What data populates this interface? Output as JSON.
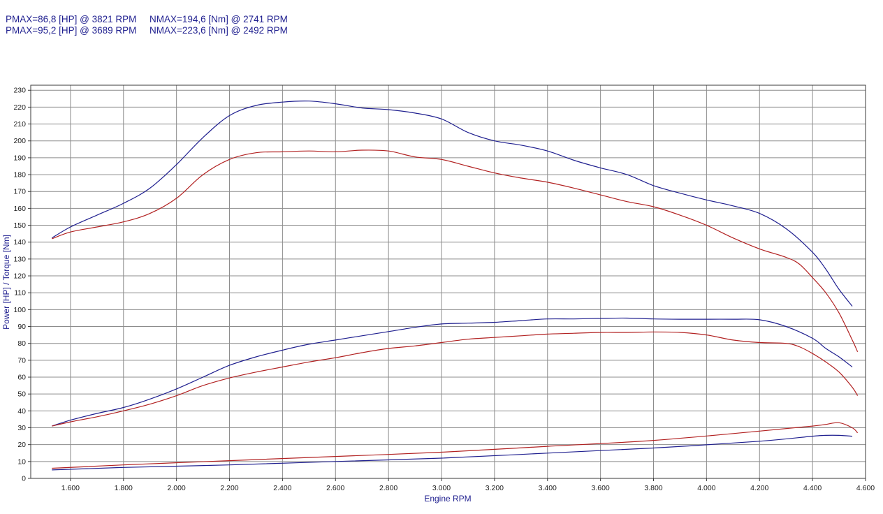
{
  "header": {
    "rows": [
      {
        "pmax": "PMAX=86,8 [HP] @ 3821 RPM",
        "nmax": "NMAX=194,6 [Nm] @ 2741 RPM"
      },
      {
        "pmax": "PMAX=95,2 [HP] @ 3689 RPM",
        "nmax": "NMAX=223,6 [Nm] @ 2492 RPM"
      }
    ]
  },
  "chart_data": {
    "type": "line",
    "xlabel": "Engine RPM",
    "ylabel": "Power [HP] / Torque [Nm]",
    "xlim": [
      1450,
      4600
    ],
    "ylim": [
      0,
      233
    ],
    "x_ticks": [
      1600,
      1800,
      2000,
      2200,
      2400,
      2600,
      2800,
      3000,
      3200,
      3400,
      3600,
      3800,
      4000,
      4200,
      4400,
      4600
    ],
    "x_tick_labels": [
      "1.600",
      "1.800",
      "2.000",
      "2.200",
      "2.400",
      "2.600",
      "2.800",
      "3.000",
      "3.200",
      "3.400",
      "3.600",
      "3.800",
      "4.000",
      "4.200",
      "4.400",
      "4.600"
    ],
    "y_ticks": [
      0,
      10,
      20,
      30,
      40,
      50,
      60,
      70,
      80,
      90,
      100,
      110,
      120,
      130,
      140,
      150,
      160,
      170,
      180,
      190,
      200,
      210,
      220,
      230
    ],
    "grid": true,
    "colors": {
      "blue": "#1f1f8f",
      "red": "#b22222",
      "grid": "#8c8c8c"
    },
    "series": [
      {
        "color": "#1f1f8f",
        "points": [
          [
            1530,
            142.5
          ],
          [
            1600,
            149
          ],
          [
            1700,
            156
          ],
          [
            1800,
            163
          ],
          [
            1900,
            172
          ],
          [
            2000,
            186
          ],
          [
            2100,
            202
          ],
          [
            2200,
            215
          ],
          [
            2300,
            221
          ],
          [
            2400,
            223
          ],
          [
            2500,
            223.6
          ],
          [
            2600,
            222
          ],
          [
            2700,
            219.5
          ],
          [
            2800,
            218.5
          ],
          [
            2900,
            216.5
          ],
          [
            3000,
            213
          ],
          [
            3100,
            205
          ],
          [
            3200,
            200
          ],
          [
            3300,
            197.5
          ],
          [
            3400,
            194
          ],
          [
            3500,
            188.5
          ],
          [
            3600,
            184
          ],
          [
            3700,
            180
          ],
          [
            3800,
            173.5
          ],
          [
            3900,
            169
          ],
          [
            4000,
            165
          ],
          [
            4100,
            161.5
          ],
          [
            4200,
            157
          ],
          [
            4300,
            148
          ],
          [
            4400,
            134
          ],
          [
            4450,
            124
          ],
          [
            4500,
            112
          ],
          [
            4550,
            102
          ]
        ]
      },
      {
        "color": "#b22222",
        "points": [
          [
            1530,
            142
          ],
          [
            1600,
            146
          ],
          [
            1700,
            149
          ],
          [
            1800,
            152
          ],
          [
            1900,
            157
          ],
          [
            2000,
            166
          ],
          [
            2100,
            180
          ],
          [
            2200,
            189
          ],
          [
            2300,
            193
          ],
          [
            2400,
            193.5
          ],
          [
            2500,
            194
          ],
          [
            2600,
            193.5
          ],
          [
            2700,
            194.5
          ],
          [
            2800,
            194
          ],
          [
            2900,
            190.5
          ],
          [
            3000,
            189
          ],
          [
            3100,
            185
          ],
          [
            3200,
            181
          ],
          [
            3300,
            178
          ],
          [
            3400,
            175.5
          ],
          [
            3500,
            172
          ],
          [
            3600,
            168
          ],
          [
            3700,
            164
          ],
          [
            3800,
            161
          ],
          [
            3900,
            156
          ],
          [
            4000,
            150
          ],
          [
            4100,
            142.5
          ],
          [
            4200,
            136
          ],
          [
            4300,
            131
          ],
          [
            4350,
            127
          ],
          [
            4400,
            119
          ],
          [
            4450,
            110
          ],
          [
            4500,
            98
          ],
          [
            4550,
            82
          ],
          [
            4570,
            75
          ]
        ]
      },
      {
        "color": "#1f1f8f",
        "points": [
          [
            1530,
            31
          ],
          [
            1600,
            34.5
          ],
          [
            1700,
            38.5
          ],
          [
            1800,
            42
          ],
          [
            1900,
            47
          ],
          [
            2000,
            53
          ],
          [
            2100,
            60
          ],
          [
            2200,
            67
          ],
          [
            2300,
            72
          ],
          [
            2400,
            76
          ],
          [
            2500,
            79.5
          ],
          [
            2600,
            82
          ],
          [
            2700,
            84.5
          ],
          [
            2800,
            87
          ],
          [
            2900,
            89.5
          ],
          [
            3000,
            91.5
          ],
          [
            3100,
            92
          ],
          [
            3200,
            92.5
          ],
          [
            3300,
            93.5
          ],
          [
            3400,
            94.5
          ],
          [
            3500,
            94.5
          ],
          [
            3600,
            94.8
          ],
          [
            3700,
            95
          ],
          [
            3800,
            94.5
          ],
          [
            3900,
            94.3
          ],
          [
            4000,
            94.3
          ],
          [
            4100,
            94.3
          ],
          [
            4200,
            94
          ],
          [
            4300,
            90
          ],
          [
            4400,
            83
          ],
          [
            4450,
            77
          ],
          [
            4500,
            72
          ],
          [
            4550,
            66
          ]
        ]
      },
      {
        "color": "#b22222",
        "points": [
          [
            1530,
            31
          ],
          [
            1600,
            33.5
          ],
          [
            1700,
            36.5
          ],
          [
            1800,
            40
          ],
          [
            1900,
            44
          ],
          [
            2000,
            49
          ],
          [
            2100,
            55
          ],
          [
            2200,
            59.5
          ],
          [
            2300,
            63
          ],
          [
            2400,
            66
          ],
          [
            2500,
            69
          ],
          [
            2600,
            71.5
          ],
          [
            2700,
            74.5
          ],
          [
            2800,
            77
          ],
          [
            2900,
            78.5
          ],
          [
            3000,
            80.5
          ],
          [
            3100,
            82.5
          ],
          [
            3200,
            83.5
          ],
          [
            3300,
            84.5
          ],
          [
            3400,
            85.5
          ],
          [
            3500,
            86
          ],
          [
            3600,
            86.5
          ],
          [
            3700,
            86.5
          ],
          [
            3800,
            86.8
          ],
          [
            3900,
            86.5
          ],
          [
            4000,
            85
          ],
          [
            4100,
            82
          ],
          [
            4200,
            80.5
          ],
          [
            4300,
            80
          ],
          [
            4350,
            78
          ],
          [
            4400,
            74
          ],
          [
            4450,
            69
          ],
          [
            4500,
            63
          ],
          [
            4550,
            54
          ],
          [
            4570,
            49
          ]
        ]
      },
      {
        "color": "#b22222",
        "points": [
          [
            1530,
            6
          ],
          [
            1800,
            8
          ],
          [
            2200,
            10.5
          ],
          [
            2600,
            13
          ],
          [
            3000,
            15.5
          ],
          [
            3400,
            19
          ],
          [
            3800,
            22.5
          ],
          [
            4200,
            28
          ],
          [
            4400,
            31
          ],
          [
            4450,
            32
          ],
          [
            4500,
            33
          ],
          [
            4550,
            30
          ],
          [
            4570,
            27
          ]
        ]
      },
      {
        "color": "#1f1f8f",
        "points": [
          [
            1530,
            5
          ],
          [
            1800,
            6.5
          ],
          [
            2200,
            8
          ],
          [
            2600,
            10
          ],
          [
            3000,
            12
          ],
          [
            3400,
            15
          ],
          [
            3800,
            18
          ],
          [
            4200,
            22
          ],
          [
            4400,
            25
          ],
          [
            4450,
            25.5
          ],
          [
            4500,
            25.5
          ],
          [
            4550,
            25
          ]
        ]
      }
    ]
  }
}
